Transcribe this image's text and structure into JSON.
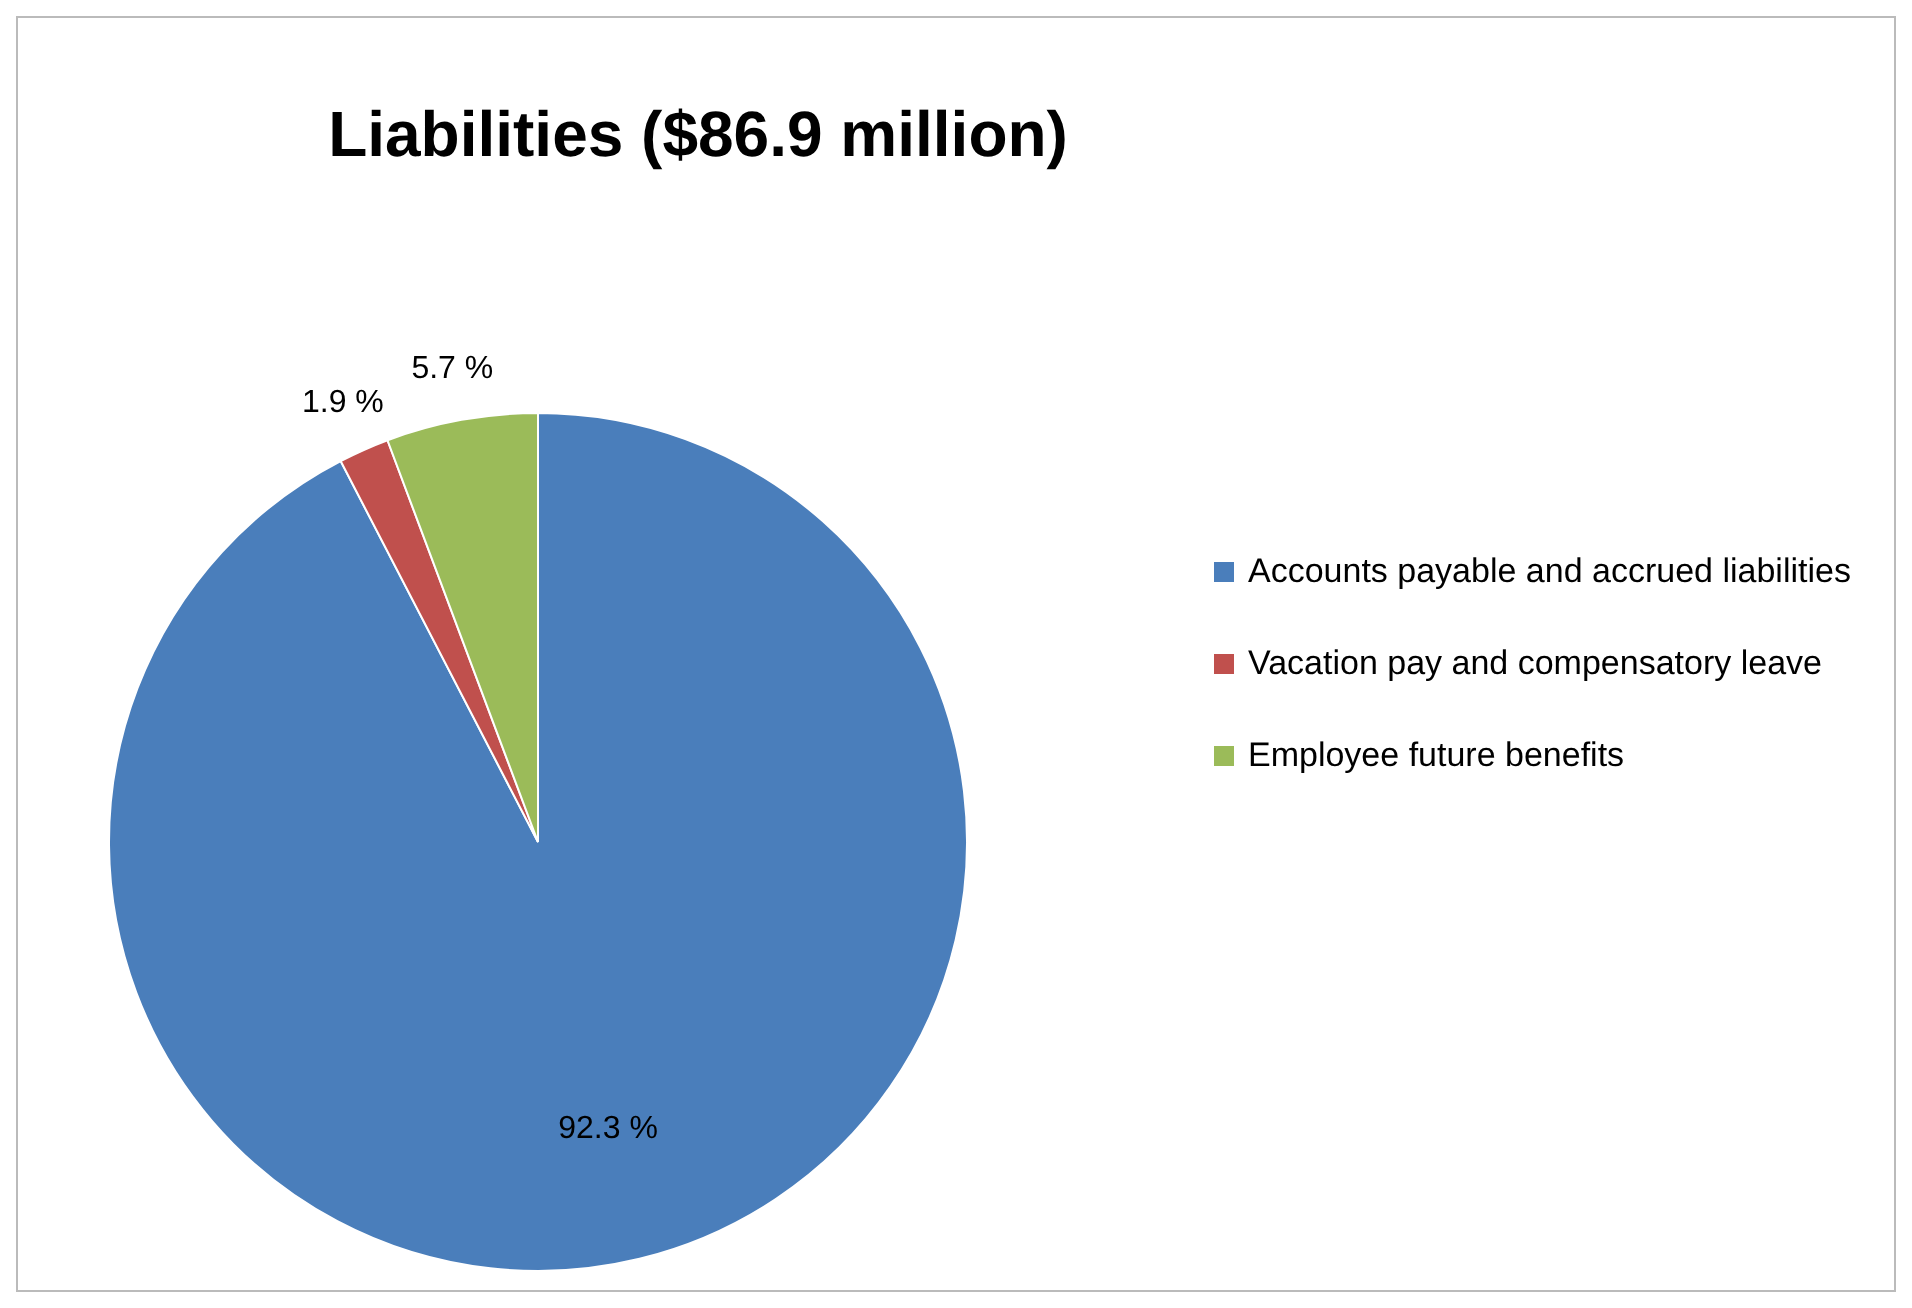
{
  "chart_data": {
    "type": "pie",
    "title": "Liabilities ($86.9 million)",
    "categories": [
      "Accounts payable and accrued liabilities",
      "Vacation pay and compensatory leave",
      "Employee future benefits"
    ],
    "values": [
      92.3,
      1.9,
      5.7
    ],
    "colors": [
      "#4a7ebb",
      "#c0504d",
      "#9bbb59"
    ],
    "value_labels": [
      "92.3 %",
      "1.9 %",
      "5.7 %"
    ],
    "legend": "right"
  }
}
